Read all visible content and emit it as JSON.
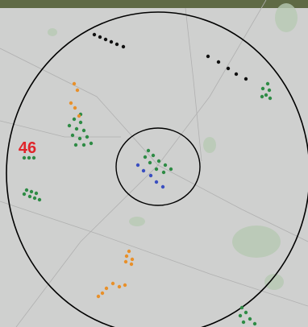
{
  "map": {
    "marker_label": "46"
  }
}
